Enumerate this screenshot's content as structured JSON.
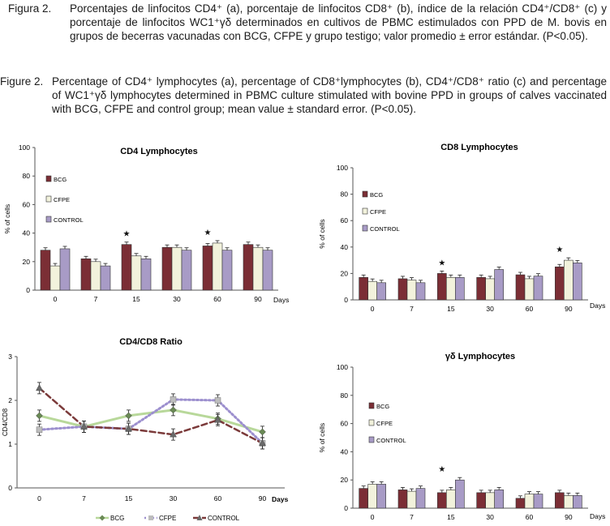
{
  "captions": {
    "es": {
      "label": "Figura 2.",
      "text": "Porcentajes de linfocitos CD4⁺ (a), porcentaje de linfocitos CD8⁺ (b), índice de la relación CD4⁺/CD8⁺ (c) y porcentaje de linfocitos WC1⁺γδ determinados en cultivos de PBMC estimulados con PPD de M. bovis en grupos de becerras vacunadas con BCG, CFPE y grupo testigo; valor promedio ± error estándar. (P<0.05)."
    },
    "en": {
      "label": "Figure 2.",
      "text": "Percentage of CD4⁺ lymphocytes (a), percentage of CD8⁺lymphocytes (b), CD4⁺/CD8⁺ ratio (c) and percentage of WC1⁺γδ lymphocytes determined in PBMC culture stimulated with bovine PPD in groups of calves vaccinated with BCG, CFPE and control group; mean value ± standard error. (P<0.05)."
    }
  },
  "colors": {
    "bcg": "#7b2e35",
    "cfpe": "#f2f2dc",
    "control": "#a89bc6",
    "ratio_bcg": "#b8d89a",
    "ratio_cfpe": "#9c8fce",
    "ratio_control": "#7b3a3a"
  },
  "chart_data": [
    {
      "id": "cd4",
      "type": "bar",
      "title": "CD4 Lymphocytes",
      "ylabel": "% of cells",
      "xlabel": "Days",
      "ylim": [
        0,
        100
      ],
      "yticks": [
        0,
        20,
        40,
        60,
        80,
        100
      ],
      "categories": [
        "0",
        "7",
        "15",
        "30",
        "60",
        "90"
      ],
      "legend": [
        "BCG",
        "CFPE",
        "CONTROL"
      ],
      "series": [
        {
          "name": "BCG",
          "values": [
            28,
            22,
            32,
            30,
            31,
            32
          ]
        },
        {
          "name": "CFPE",
          "values": [
            17,
            20,
            24,
            30,
            33,
            30
          ]
        },
        {
          "name": "CONTROL",
          "values": [
            29,
            17,
            22,
            28,
            28,
            28
          ]
        }
      ],
      "significance": {
        "categories": [
          "15",
          "60"
        ],
        "symbol": "★"
      }
    },
    {
      "id": "cd8",
      "type": "bar",
      "title": "CD8 Lymphocytes",
      "ylabel": "% of cells",
      "xlabel": "Days",
      "ylim": [
        0,
        100
      ],
      "yticks": [
        0,
        20,
        40,
        60,
        80,
        100
      ],
      "categories": [
        "0",
        "7",
        "15",
        "30",
        "60",
        "90"
      ],
      "legend": [
        "BCG",
        "CFPE",
        "CONTROL"
      ],
      "series": [
        {
          "name": "BCG",
          "values": [
            17,
            16,
            20,
            17,
            19,
            25
          ]
        },
        {
          "name": "CFPE",
          "values": [
            14,
            15,
            17,
            16,
            16,
            30
          ]
        },
        {
          "name": "CONTROL",
          "values": [
            13,
            13,
            17,
            23,
            18,
            28
          ]
        }
      ],
      "significance": {
        "categories": [
          "15",
          "90"
        ],
        "symbol": "★"
      }
    },
    {
      "id": "ratio",
      "type": "line",
      "title": "CD4/CD8 Ratio",
      "ylabel": "CD4/CD8",
      "xlabel": "Days",
      "ylim": [
        0,
        3
      ],
      "yticks": [
        0,
        1,
        2,
        3
      ],
      "categories": [
        "0",
        "7",
        "15",
        "30",
        "60",
        "90"
      ],
      "series": [
        {
          "name": "BCG",
          "values": [
            1.65,
            1.4,
            1.65,
            1.78,
            1.58,
            1.28
          ]
        },
        {
          "name": "CFPE",
          "values": [
            1.33,
            1.4,
            1.35,
            2.02,
            2.0,
            1.02
          ]
        },
        {
          "name": "CONTROL",
          "values": [
            2.28,
            1.4,
            1.35,
            1.22,
            1.55,
            1.02
          ]
        }
      ]
    },
    {
      "id": "gd",
      "type": "bar",
      "title": "γδ Lymphocytes",
      "ylabel": "% of cells",
      "xlabel": "Days",
      "ylim": [
        0,
        100
      ],
      "yticks": [
        0,
        20,
        40,
        60,
        80,
        100
      ],
      "categories": [
        "0",
        "7",
        "15",
        "30",
        "60",
        "90"
      ],
      "legend": [
        "BCG",
        "CFPE",
        "CONTROL"
      ],
      "series": [
        {
          "name": "BCG",
          "values": [
            14,
            13,
            11,
            11,
            7,
            11
          ]
        },
        {
          "name": "CFPE",
          "values": [
            17,
            12,
            13,
            11,
            10,
            9
          ]
        },
        {
          "name": "CONTROL",
          "values": [
            17,
            14,
            20,
            13,
            10,
            9
          ]
        }
      ],
      "significance": {
        "categories": [
          "15"
        ],
        "symbol": "★"
      }
    }
  ]
}
